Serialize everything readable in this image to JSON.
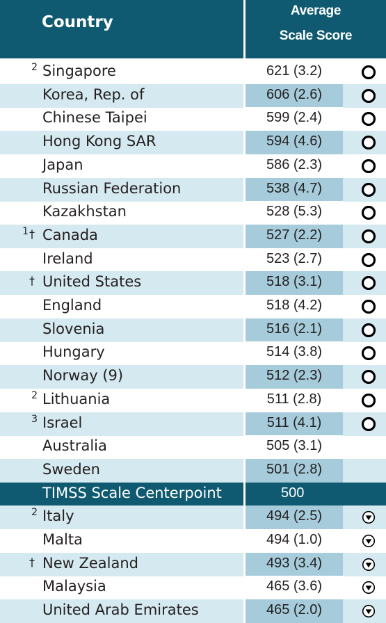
{
  "header": {
    "country_label": "Country",
    "score_label_line1": "Average",
    "score_label_line2": "Scale Score"
  },
  "colors": {
    "header_bg": "#0f5a70",
    "row_shade_light": "#d5e9f0",
    "row_shade_score": "#a6ccdb",
    "centerpoint_bg": "#0f5a70"
  },
  "rows": [
    {
      "note": "2",
      "dagger": "",
      "country": "Singapore",
      "score": "621 (3.2)",
      "indicator": "up"
    },
    {
      "note": "",
      "dagger": "",
      "country": "Korea, Rep. of",
      "score": "606 (2.6)",
      "indicator": "up"
    },
    {
      "note": "",
      "dagger": "",
      "country": "Chinese Taipei",
      "score": "599 (2.4)",
      "indicator": "up"
    },
    {
      "note": "",
      "dagger": "",
      "country": "Hong Kong SAR",
      "score": "594 (4.6)",
      "indicator": "up"
    },
    {
      "note": "",
      "dagger": "",
      "country": "Japan",
      "score": "586 (2.3)",
      "indicator": "up"
    },
    {
      "note": "",
      "dagger": "",
      "country": "Russian Federation",
      "score": "538 (4.7)",
      "indicator": "up"
    },
    {
      "note": "",
      "dagger": "",
      "country": "Kazakhstan",
      "score": "528 (5.3)",
      "indicator": "up"
    },
    {
      "note": "1",
      "dagger": "†",
      "country": "Canada",
      "score": "527 (2.2)",
      "indicator": "up"
    },
    {
      "note": "",
      "dagger": "",
      "country": "Ireland",
      "score": "523 (2.7)",
      "indicator": "up"
    },
    {
      "note": "",
      "dagger": "†",
      "country": "United States",
      "score": "518 (3.1)",
      "indicator": "up"
    },
    {
      "note": "",
      "dagger": "",
      "country": "England",
      "score": "518 (4.2)",
      "indicator": "up"
    },
    {
      "note": "",
      "dagger": "",
      "country": "Slovenia",
      "score": "516 (2.1)",
      "indicator": "up"
    },
    {
      "note": "",
      "dagger": "",
      "country": "Hungary",
      "score": "514 (3.8)",
      "indicator": "up"
    },
    {
      "note": "",
      "dagger": "",
      "country": "Norway (9)",
      "score": "512 (2.3)",
      "indicator": "up"
    },
    {
      "note": "2",
      "dagger": "",
      "country": "Lithuania",
      "score": "511 (2.8)",
      "indicator": "up"
    },
    {
      "note": "3",
      "dagger": "",
      "country": "Israel",
      "score": "511 (4.1)",
      "indicator": "up"
    },
    {
      "note": "",
      "dagger": "",
      "country": "Australia",
      "score": "505 (3.1)",
      "indicator": "none"
    },
    {
      "note": "",
      "dagger": "",
      "country": "Sweden",
      "score": "501 (2.8)",
      "indicator": "none"
    },
    {
      "note": "",
      "dagger": "",
      "country": "TIMSS Scale Centerpoint",
      "score": "500",
      "indicator": "center"
    },
    {
      "note": "2",
      "dagger": "",
      "country": "Italy",
      "score": "494 (2.5)",
      "indicator": "down"
    },
    {
      "note": "",
      "dagger": "",
      "country": "Malta",
      "score": "494 (1.0)",
      "indicator": "down"
    },
    {
      "note": "",
      "dagger": "†",
      "country": "New Zealand",
      "score": "493 (3.4)",
      "indicator": "down"
    },
    {
      "note": "",
      "dagger": "",
      "country": "Malaysia",
      "score": "465 (3.6)",
      "indicator": "down"
    },
    {
      "note": "",
      "dagger": "",
      "country": "United Arab Emirates",
      "score": "465 (2.0)",
      "indicator": "down"
    }
  ],
  "chart_data": {
    "type": "table",
    "title": "",
    "columns": [
      "Country",
      "Average Scale Score"
    ],
    "categories": [
      "Singapore",
      "Korea, Rep. of",
      "Chinese Taipei",
      "Hong Kong SAR",
      "Japan",
      "Russian Federation",
      "Kazakhstan",
      "Canada",
      "Ireland",
      "United States",
      "England",
      "Slovenia",
      "Hungary",
      "Norway (9)",
      "Lithuania",
      "Israel",
      "Australia",
      "Sweden",
      "TIMSS Scale Centerpoint",
      "Italy",
      "Malta",
      "New Zealand",
      "Malaysia",
      "United Arab Emirates"
    ],
    "values": [
      621,
      606,
      599,
      594,
      586,
      538,
      528,
      527,
      523,
      518,
      518,
      516,
      514,
      512,
      511,
      511,
      505,
      501,
      500,
      494,
      494,
      493,
      465,
      465
    ],
    "standard_errors": [
      3.2,
      2.6,
      2.4,
      4.6,
      2.3,
      4.7,
      5.3,
      2.2,
      2.7,
      3.1,
      4.2,
      2.1,
      3.8,
      2.3,
      2.8,
      4.1,
      3.1,
      2.8,
      null,
      2.5,
      1.0,
      3.4,
      3.6,
      2.0
    ],
    "centerpoint": 500
  }
}
